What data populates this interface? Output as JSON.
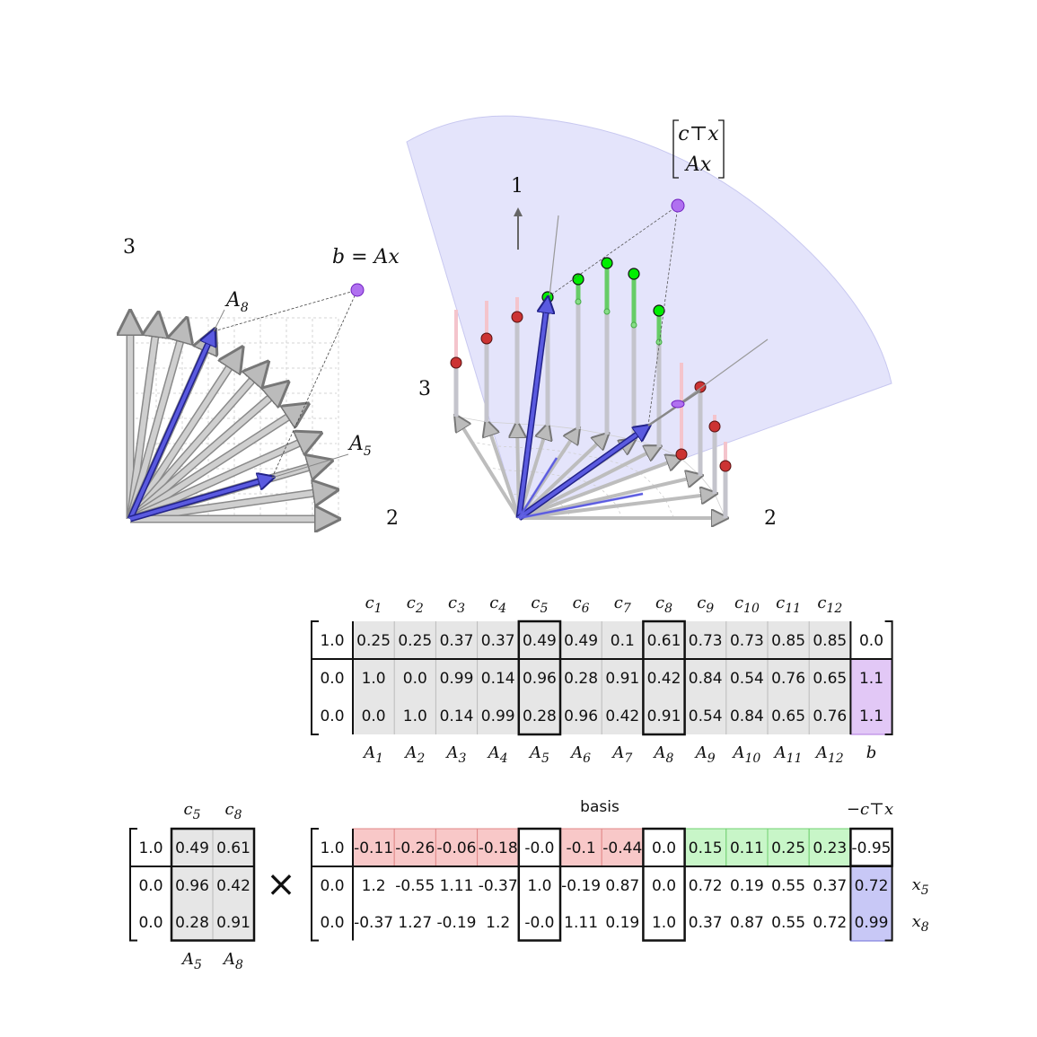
{
  "left_plot": {
    "axis_label_vertical": "3",
    "axis_label_horizontal": "2",
    "point_label": "b = Ax",
    "vector_label_a": "A",
    "vector_label_a_sub": "8",
    "vector_label_b": "A",
    "vector_label_b_sub": "5"
  },
  "right_plot": {
    "axis_label_vertical": "3",
    "axis_label_horizontal": "2",
    "axis_label_up": "1",
    "point_label_top": "c⊤x",
    "point_label_bottom": "Ax"
  },
  "top_table": {
    "cost_headers": [
      "c1",
      "c2",
      "c3",
      "c4",
      "c5",
      "c6",
      "c7",
      "c8",
      "c9",
      "c10",
      "c11",
      "c12"
    ],
    "column_labels": [
      "A1",
      "A2",
      "A3",
      "A4",
      "A5",
      "A6",
      "A7",
      "A8",
      "A9",
      "A10",
      "A11",
      "A12"
    ],
    "b_label": "b",
    "lead_column": [
      "1.0",
      "0.0",
      "0.0"
    ],
    "rows": [
      [
        "0.25",
        "0.25",
        "0.37",
        "0.37",
        "0.49",
        "0.49",
        "0.1",
        "0.61",
        "0.73",
        "0.73",
        "0.85",
        "0.85"
      ],
      [
        "1.0",
        "0.0",
        "0.99",
        "0.14",
        "0.96",
        "0.28",
        "0.91",
        "0.42",
        "0.84",
        "0.54",
        "0.76",
        "0.65"
      ],
      [
        "0.0",
        "1.0",
        "0.14",
        "0.99",
        "0.28",
        "0.96",
        "0.42",
        "0.91",
        "0.54",
        "0.84",
        "0.65",
        "0.76"
      ]
    ],
    "b_column": [
      "0.0",
      "1.1",
      "1.1"
    ]
  },
  "basis_matrix": {
    "cost_headers": [
      "c5",
      "c8"
    ],
    "column_labels": [
      "A5",
      "A8"
    ],
    "lead_column": [
      "1.0",
      "0.0",
      "0.0"
    ],
    "rows": [
      [
        "0.49",
        "0.61"
      ],
      [
        "0.96",
        "0.42"
      ],
      [
        "0.28",
        "0.91"
      ]
    ]
  },
  "times_symbol": "×",
  "bottom_table": {
    "title": "basis",
    "result_header": "−c⊤x",
    "lead_column": [
      "1.0",
      "0.0",
      "0.0"
    ],
    "rows": [
      [
        "-0.11",
        "-0.26",
        "-0.06",
        "-0.18",
        "-0.0",
        "-0.1",
        "-0.44",
        "0.0",
        "0.15",
        "0.11",
        "0.25",
        "0.23"
      ],
      [
        "1.2",
        "-0.55",
        "1.11",
        "-0.37",
        "1.0",
        "-0.19",
        "0.87",
        "0.0",
        "0.72",
        "0.19",
        "0.55",
        "0.37"
      ],
      [
        "-0.37",
        "1.27",
        "-0.19",
        "1.2",
        "-0.0",
        "1.11",
        "0.19",
        "1.0",
        "0.37",
        "0.87",
        "0.55",
        "0.72"
      ]
    ],
    "result_column": [
      "-0.95",
      "0.72",
      "0.99"
    ],
    "row_labels": [
      "",
      "x5",
      "x8"
    ]
  },
  "colors": {
    "basis_blue": "#3a3ad0",
    "gray_vector": "#999999",
    "cone_fill": "#dcdcfa",
    "green_point": "#00ee00",
    "red_point": "#cc3333",
    "purple_point": "#a040f0",
    "cell_gray": "#e6e6e6",
    "cell_red": "#f8c8c8",
    "cell_green": "#c8f6c8",
    "cell_purple": "#e2c8f6",
    "cell_blue": "#c8c8f6"
  }
}
